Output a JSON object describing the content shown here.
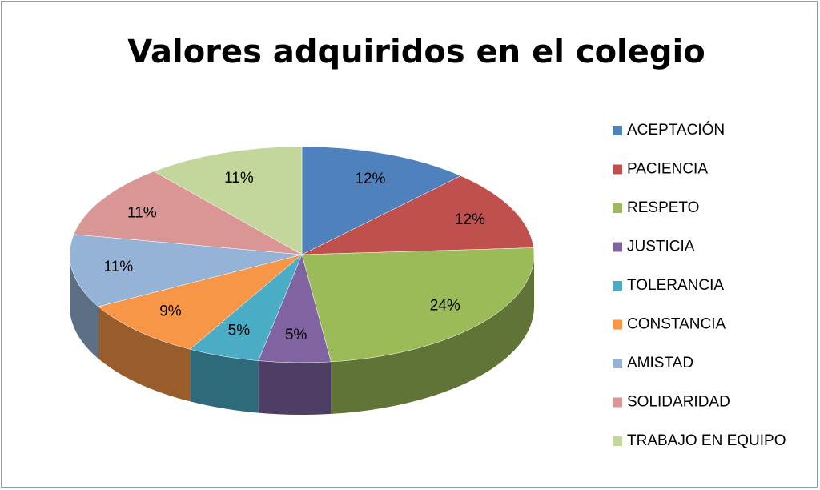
{
  "chart_data": {
    "type": "pie",
    "title": "Valores adquiridos en el colegio",
    "categories": [
      "ACEPTACIÓN",
      "PACIENCIA",
      "RESPETO",
      "JUSTICIA",
      "TOLERANCIA",
      "CONSTANCIA",
      "AMISTAD",
      "SOLIDARIDAD",
      "TRABAJO EN EQUIPO"
    ],
    "values": [
      12,
      12,
      24,
      5,
      5,
      9,
      11,
      11,
      11
    ],
    "value_labels": [
      "12%",
      "12%",
      "24%",
      "5%",
      "5%",
      "9%",
      "11%",
      "11%",
      "11%"
    ],
    "colors": [
      "#4f81bd",
      "#c0504d",
      "#9bbb59",
      "#8064a2",
      "#4bacc6",
      "#f79646",
      "#95b3d7",
      "#d99694",
      "#c3d69b"
    ],
    "legend": "right"
  }
}
